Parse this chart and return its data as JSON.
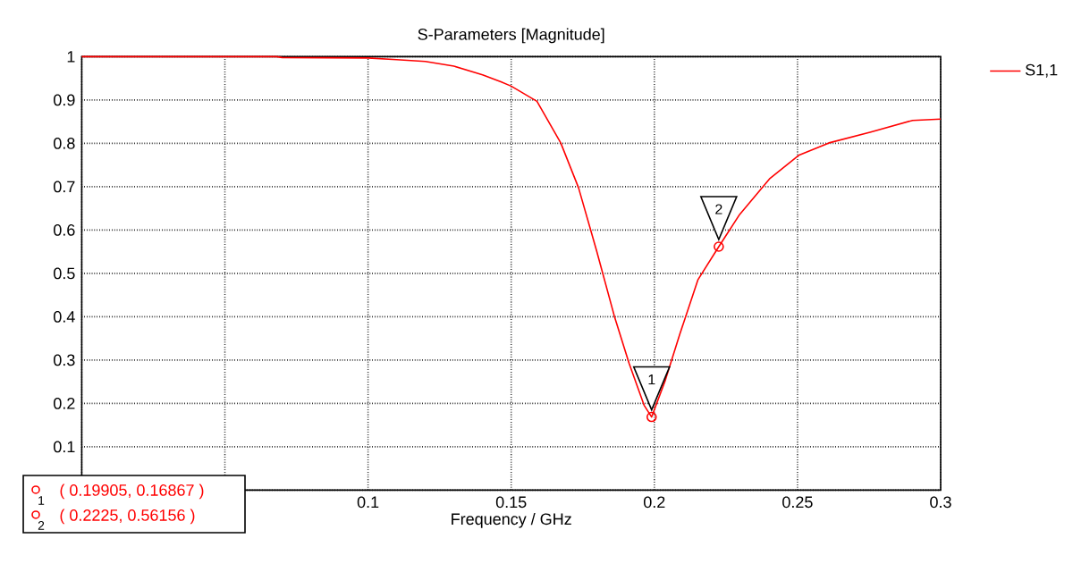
{
  "chart_data": {
    "type": "line",
    "title": "S-Parameters [Magnitude]",
    "xlabel": "Frequency / GHz",
    "xlim": [
      0,
      0.3
    ],
    "ylim": [
      0,
      1
    ],
    "xticks": [
      {
        "value": 0,
        "label": null
      },
      {
        "value": 0.05,
        "label": null
      },
      0.1,
      0.15,
      0.2,
      0.25,
      0.3
    ],
    "yticks": [
      {
        "value": 0,
        "label": null
      },
      0.1,
      0.2,
      0.3,
      0.4,
      0.5,
      0.6,
      0.7,
      0.8,
      0.9,
      1
    ],
    "grid": true,
    "legend": "top right",
    "marker": "none",
    "line_style": "solid",
    "annotations": [
      {
        "text": "1",
        "x": 0.19905,
        "y": 0.16867
      },
      {
        "text": "2",
        "x": 0.2225,
        "y": 0.56156
      },
      "( 0.19905, 0.16867 )",
      "( 0.2225, 0.56156 )"
    ],
    "series": [
      {
        "name": "S1,1",
        "color": "#ff0000",
        "x": [
          0,
          0.068,
          0.07,
          0.1,
          0.11,
          0.12,
          0.13,
          0.14,
          0.1464,
          0.15,
          0.159,
          0.1673,
          0.1735,
          0.1798,
          0.186,
          0.1912,
          0.1964,
          0.19905,
          0.2037,
          0.2089,
          0.2152,
          0.2225,
          0.2298,
          0.2402,
          0.2506,
          0.261,
          0.2756,
          0.2902,
          0.3
        ],
        "values": [
          1.0,
          1.0,
          0.998,
          0.997,
          0.993,
          0.989,
          0.978,
          0.958,
          0.942,
          0.932,
          0.897,
          0.801,
          0.698,
          0.553,
          0.402,
          0.292,
          0.196,
          0.16867,
          0.251,
          0.36,
          0.485,
          0.56156,
          0.636,
          0.718,
          0.773,
          0.801,
          0.826,
          0.853,
          0.856
        ]
      }
    ]
  }
}
